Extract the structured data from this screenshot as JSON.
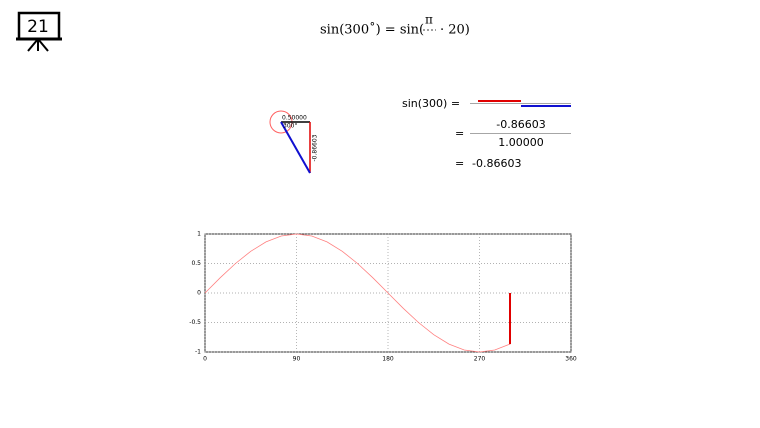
{
  "slide_number": "21",
  "title": {
    "left": "sin(300˚) = sin(",
    "numerator": "π",
    "right": "· 20)"
  },
  "diagram": {
    "cos_label": "0.50000",
    "angle_label": "300°",
    "sin_label": "-0.86603"
  },
  "equation": {
    "lhs": "sin(300) =",
    "eq1": "=",
    "numerator": "-0.86603",
    "denominator": "1.00000",
    "eq2": "=",
    "result": "-0.86603"
  },
  "chart_data": {
    "type": "line",
    "xlim": [
      0,
      360
    ],
    "xticks": [
      0,
      90,
      180,
      270,
      360
    ],
    "ylim": [
      -1,
      1
    ],
    "yticks": [
      1,
      0.5,
      0,
      -0.5,
      -1
    ],
    "grid": true,
    "series": [
      {
        "color": "#ff8080",
        "x": [
          0,
          15,
          30,
          45,
          60,
          75,
          90,
          105,
          120,
          135,
          150,
          165,
          180,
          195,
          210,
          225,
          240,
          255,
          270,
          285,
          300
        ],
        "values": [
          0,
          0.259,
          0.5,
          0.707,
          0.866,
          0.966,
          1,
          0.966,
          0.866,
          0.707,
          0.5,
          0.259,
          0,
          -0.259,
          -0.5,
          -0.707,
          -0.866,
          -0.966,
          -1,
          -0.966,
          -0.866
        ]
      },
      {
        "color": "#e00000",
        "x": [
          300,
          300
        ],
        "values": [
          0,
          -0.866
        ]
      }
    ]
  }
}
